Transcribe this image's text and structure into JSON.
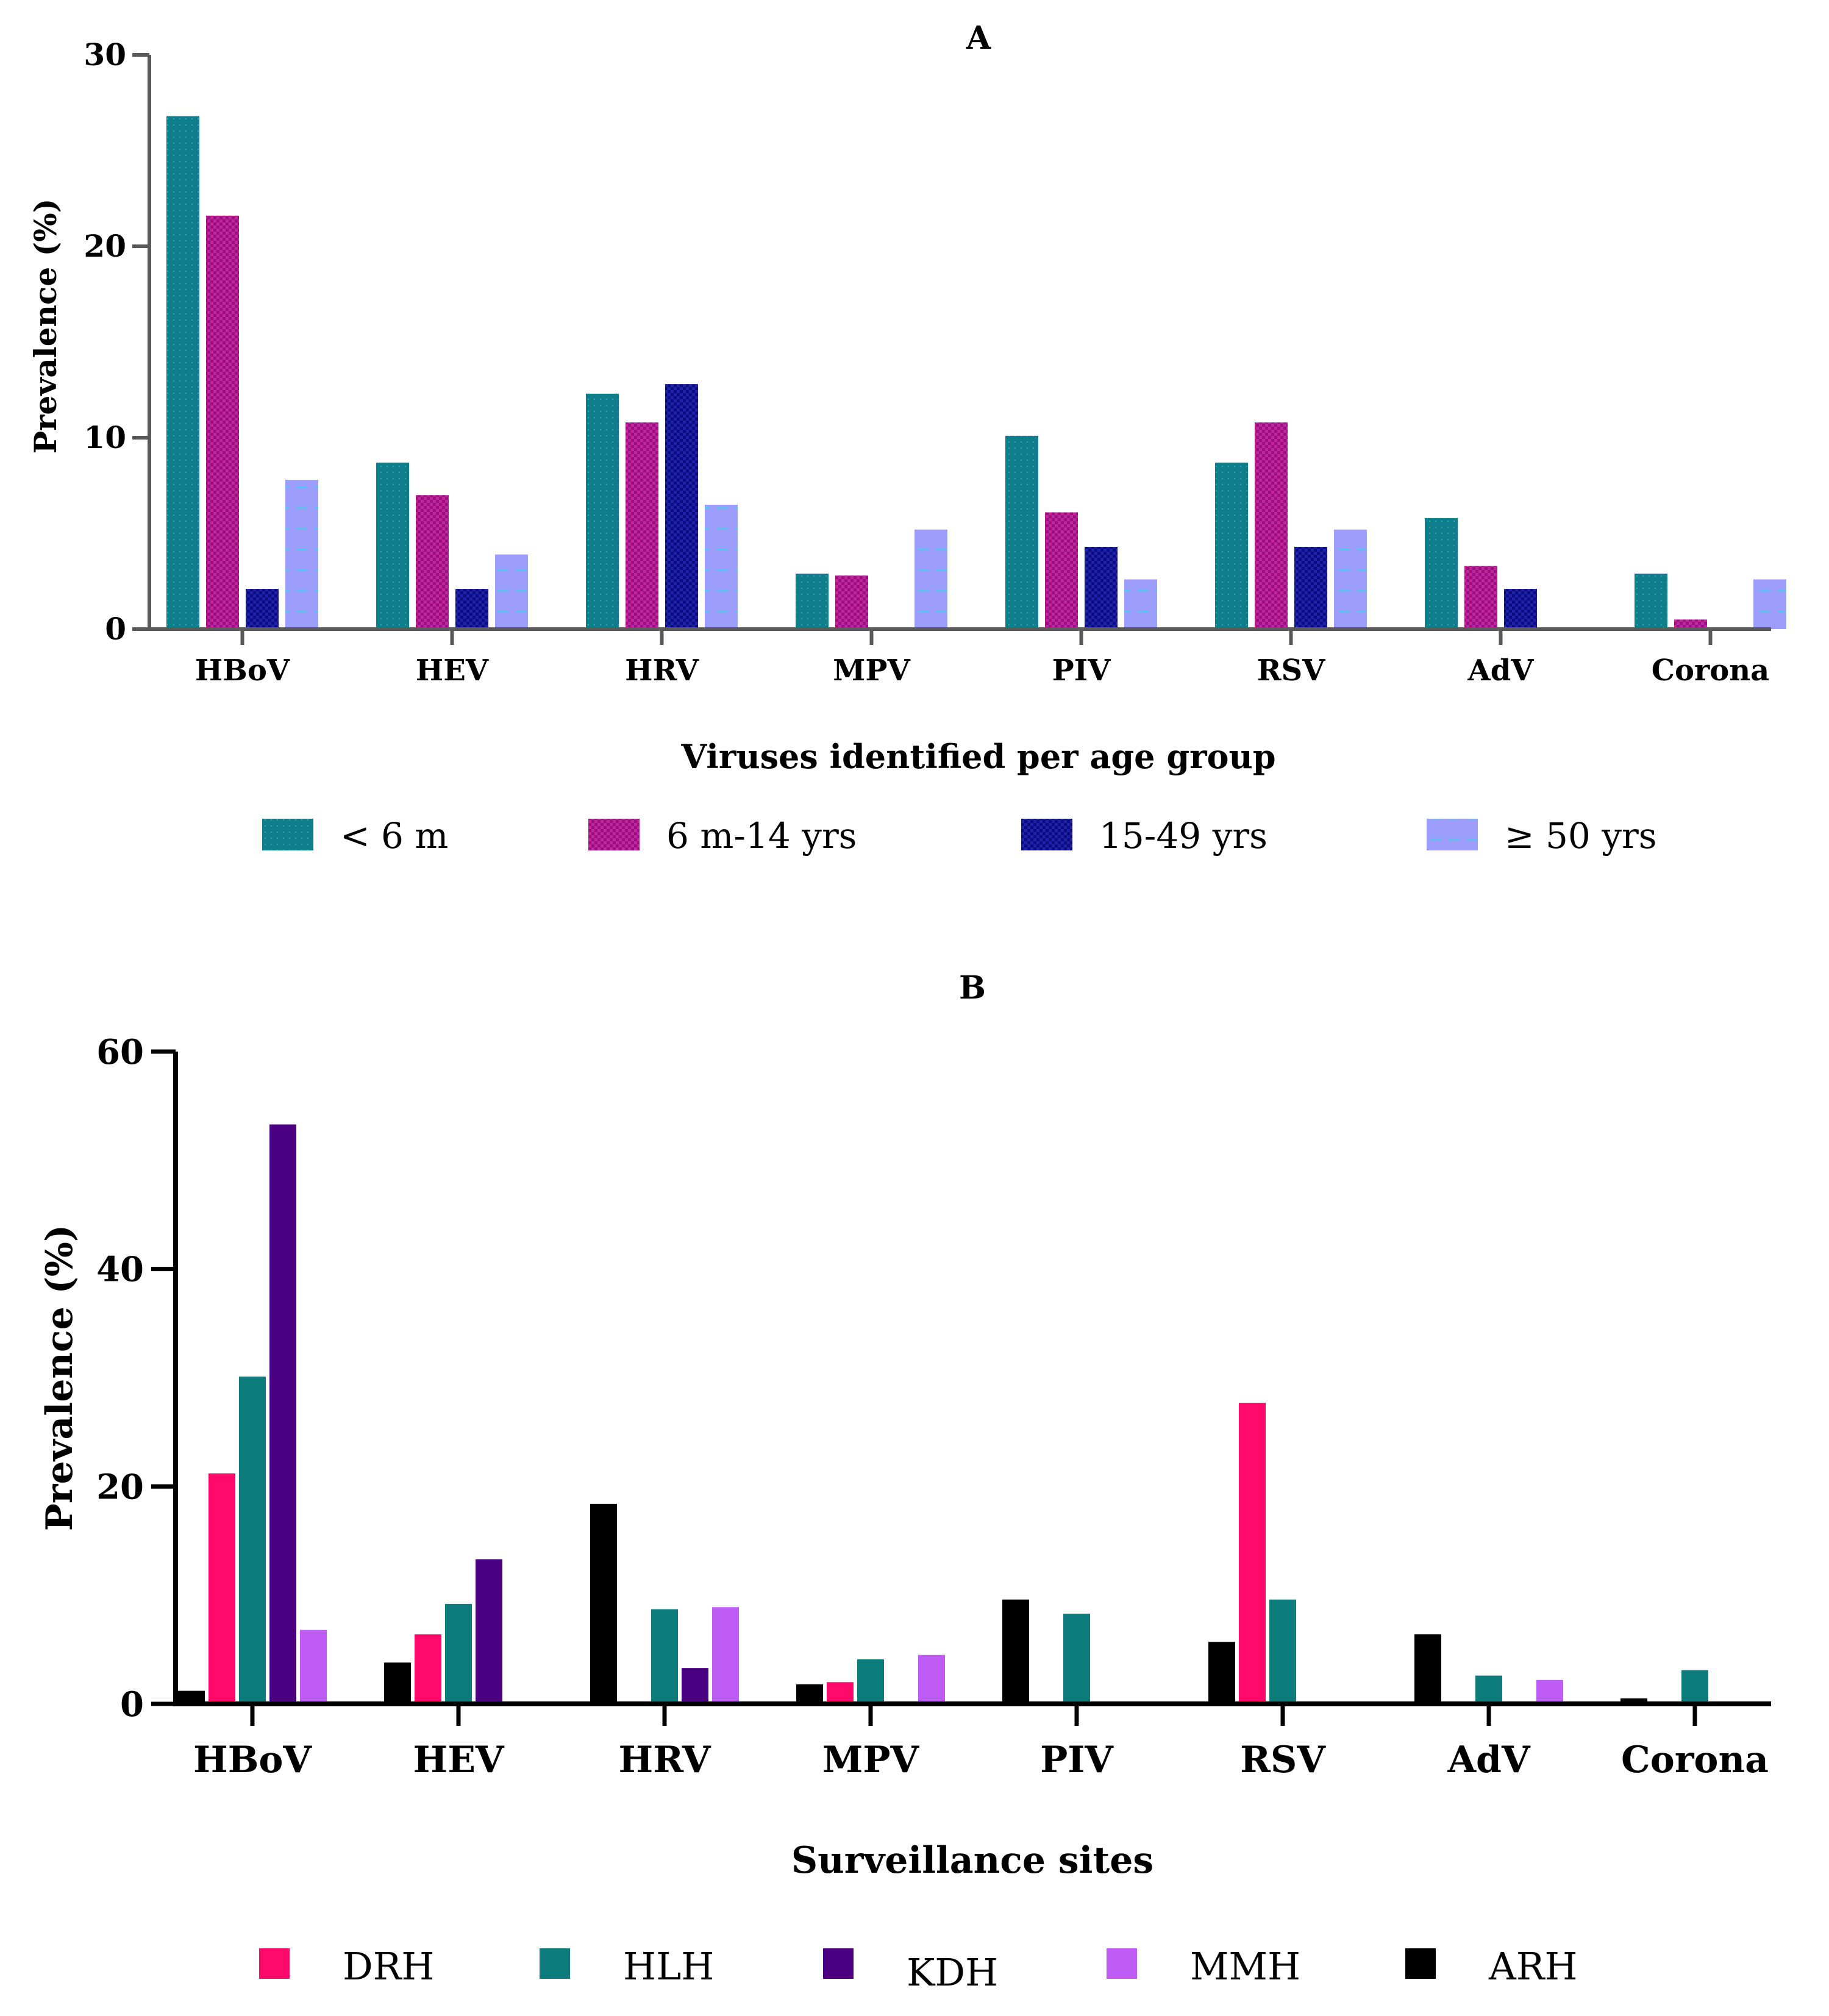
{
  "colors": {
    "lt6m": "#0e7d8c",
    "m6_14": "#9b0f7f",
    "y15_49": "#0b0c80",
    "ge50": "#9d9dfb",
    "DRH": "#ff0a6a",
    "HLH": "#0c7c7c",
    "KDH": "#4b0082",
    "MMH": "#bf5cf5",
    "ARH": "#000000",
    "axisA": "#5a5a5a",
    "axisB": "#000000"
  },
  "chart_data": [
    {
      "type": "bar",
      "title": "A",
      "xlabel": "Viruses identified per age group",
      "ylabel": "Prevalence (%)",
      "ylim": [
        0,
        30
      ],
      "yticks": [
        "0",
        "10",
        "20",
        "30"
      ],
      "categories": [
        "HBoV",
        "HEV",
        "HRV",
        "MPV",
        "PIV",
        "RSV",
        "AdV",
        "Corona"
      ],
      "legend_position": "bottom",
      "series": [
        {
          "name": "< 6 m",
          "color_key": "lt6m",
          "values": [
            26.8,
            8.7,
            12.3,
            2.9,
            10.1,
            8.7,
            5.8,
            2.9
          ]
        },
        {
          "name": "6 m-14 yrs",
          "color_key": "m6_14",
          "values": [
            21.6,
            7.0,
            10.8,
            2.8,
            6.1,
            10.8,
            3.3,
            0.5
          ]
        },
        {
          "name": "15-49 yrs",
          "color_key": "y15_49",
          "values": [
            2.1,
            2.1,
            12.8,
            0,
            4.3,
            4.3,
            2.1,
            0
          ]
        },
        {
          "name": "≥ 50 yrs",
          "color_key": "ge50",
          "values": [
            7.8,
            3.9,
            6.5,
            5.2,
            2.6,
            5.2,
            0,
            2.6
          ]
        }
      ]
    },
    {
      "type": "bar",
      "title": "B",
      "xlabel": "Surveillance sites",
      "ylabel": "Prevalence (%)",
      "ylim": [
        0,
        60
      ],
      "yticks": [
        "0",
        "20",
        "40",
        "60"
      ],
      "categories": [
        "HBoV",
        "HEV",
        "HRV",
        "MPV",
        "PIV",
        "RSV",
        "AdV",
        "Corona"
      ],
      "legend_position": "bottom",
      "series": [
        {
          "name": "ARH",
          "color_key": "ARH",
          "values": [
            1.2,
            3.8,
            18.4,
            1.8,
            9.6,
            5.7,
            6.4,
            0.5
          ]
        },
        {
          "name": "DRH",
          "color_key": "DRH",
          "values": [
            21.2,
            6.4,
            0,
            2.0,
            0,
            27.7,
            0,
            0
          ]
        },
        {
          "name": "HLH",
          "color_key": "HLH",
          "values": [
            30.1,
            9.2,
            8.7,
            4.1,
            8.3,
            9.6,
            2.6,
            3.1
          ]
        },
        {
          "name": "KDH",
          "color_key": "KDH",
          "values": [
            53.3,
            13.3,
            3.3,
            0,
            0,
            0,
            0,
            0
          ]
        },
        {
          "name": "MMH",
          "color_key": "MMH",
          "values": [
            6.8,
            0,
            8.9,
            4.5,
            0,
            0,
            2.2,
            0
          ]
        }
      ],
      "legend_order": [
        "DRH",
        "HLH",
        "KDH",
        "MMH",
        "ARH"
      ]
    }
  ]
}
